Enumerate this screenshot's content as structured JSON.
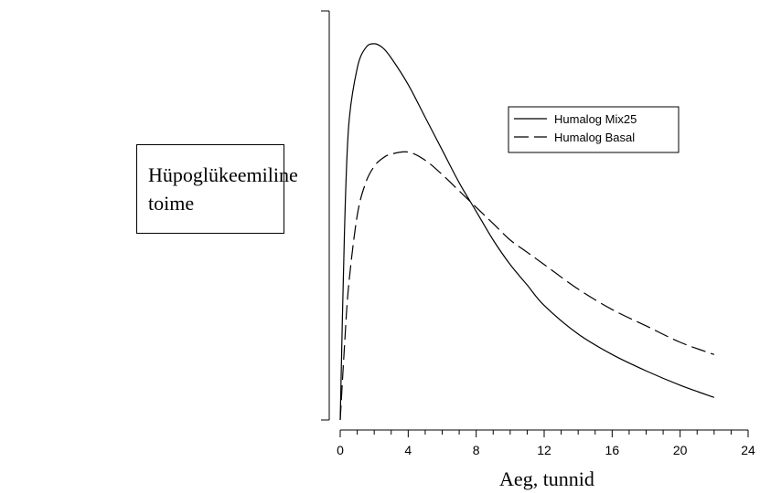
{
  "chart_data": {
    "type": "line",
    "title": "",
    "ylabel": "Hüpoglükeemiline toime",
    "xlabel": "Aeg, tunnid",
    "xlim": [
      0,
      24
    ],
    "ylim": [
      0,
      1
    ],
    "xticks": [
      0,
      4,
      8,
      12,
      16,
      20,
      24
    ],
    "yticks_labeled": false,
    "grid": false,
    "legend_position": "top-right",
    "series": [
      {
        "name": "Humalog Mix25",
        "line_style": "solid",
        "color": "#000000",
        "x": [
          0,
          0.25,
          0.5,
          1,
          1.5,
          2,
          2.5,
          3,
          4,
          5,
          6,
          7,
          8,
          9,
          10,
          11,
          12,
          14,
          16,
          18,
          20,
          22
        ],
        "y": [
          0,
          0.46,
          0.72,
          0.86,
          0.91,
          0.92,
          0.91,
          0.885,
          0.82,
          0.74,
          0.66,
          0.58,
          0.51,
          0.44,
          0.38,
          0.33,
          0.28,
          0.21,
          0.16,
          0.12,
          0.085,
          0.055
        ]
      },
      {
        "name": "Humalog Basal",
        "line_style": "dashed",
        "color": "#000000",
        "x": [
          0,
          0.25,
          0.5,
          1,
          1.5,
          2,
          2.5,
          3,
          4,
          5,
          6,
          7,
          8,
          9,
          10,
          11,
          12,
          14,
          16,
          18,
          20,
          22
        ],
        "y": [
          0,
          0.18,
          0.33,
          0.5,
          0.58,
          0.62,
          0.64,
          0.65,
          0.655,
          0.635,
          0.6,
          0.56,
          0.52,
          0.48,
          0.44,
          0.41,
          0.38,
          0.32,
          0.27,
          0.23,
          0.19,
          0.16
        ]
      }
    ]
  }
}
